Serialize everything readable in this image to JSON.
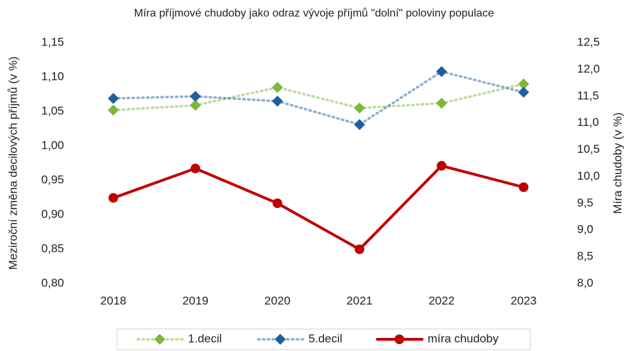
{
  "chart_data": {
    "type": "line",
    "title": "Míra příjmové chudoby jako odraz vývoje příjmů \"dolní\" poloviny populace",
    "ylabel": "Meziroční změna decilových příjmů (v %)",
    "y2label": "Míra chudoby (v %)",
    "categories": [
      "2018",
      "2019",
      "2020",
      "2021",
      "2022",
      "2023"
    ],
    "ylim": [
      0.8,
      1.15
    ],
    "yticks": [
      {
        "value": 0.8,
        "label": "0,80"
      },
      {
        "value": 0.85,
        "label": "0,85"
      },
      {
        "value": 0.9,
        "label": "0,90"
      },
      {
        "value": 0.95,
        "label": "0,95"
      },
      {
        "value": 1.0,
        "label": "1,00"
      },
      {
        "value": 1.05,
        "label": "1,05"
      },
      {
        "value": 1.1,
        "label": "1,10"
      },
      {
        "value": 1.15,
        "label": "1,15"
      }
    ],
    "y2lim": [
      8.0,
      12.5
    ],
    "y2ticks": [
      {
        "value": 8.0,
        "label": "8,0"
      },
      {
        "value": 8.5,
        "label": "8,5"
      },
      {
        "value": 9.0,
        "label": "9,0"
      },
      {
        "value": 9.5,
        "label": "9,5"
      },
      {
        "value": 10.0,
        "label": "10,0"
      },
      {
        "value": 10.5,
        "label": "10,5"
      },
      {
        "value": 11.0,
        "label": "11,0"
      },
      {
        "value": 11.5,
        "label": "11,5"
      },
      {
        "value": 12.0,
        "label": "12,0"
      },
      {
        "value": 12.5,
        "label": "12,5"
      }
    ],
    "y2color": "#c00000",
    "legend": "bottom",
    "grid": false,
    "series": [
      {
        "name": "1.decil",
        "color": "#7cb83a",
        "values": [
          1.052,
          1.059,
          1.085,
          1.055,
          1.062,
          1.09
        ]
      },
      {
        "name": "5.decil",
        "color": "#1f5f9e",
        "values": [
          1.069,
          1.072,
          1.065,
          1.031,
          1.108,
          1.078
        ]
      },
      {
        "name": "míra chudoby",
        "color": "#c00000",
        "axis": "y2",
        "values": [
          9.6,
          10.15,
          9.5,
          8.64,
          10.2,
          9.8
        ]
      }
    ]
  }
}
